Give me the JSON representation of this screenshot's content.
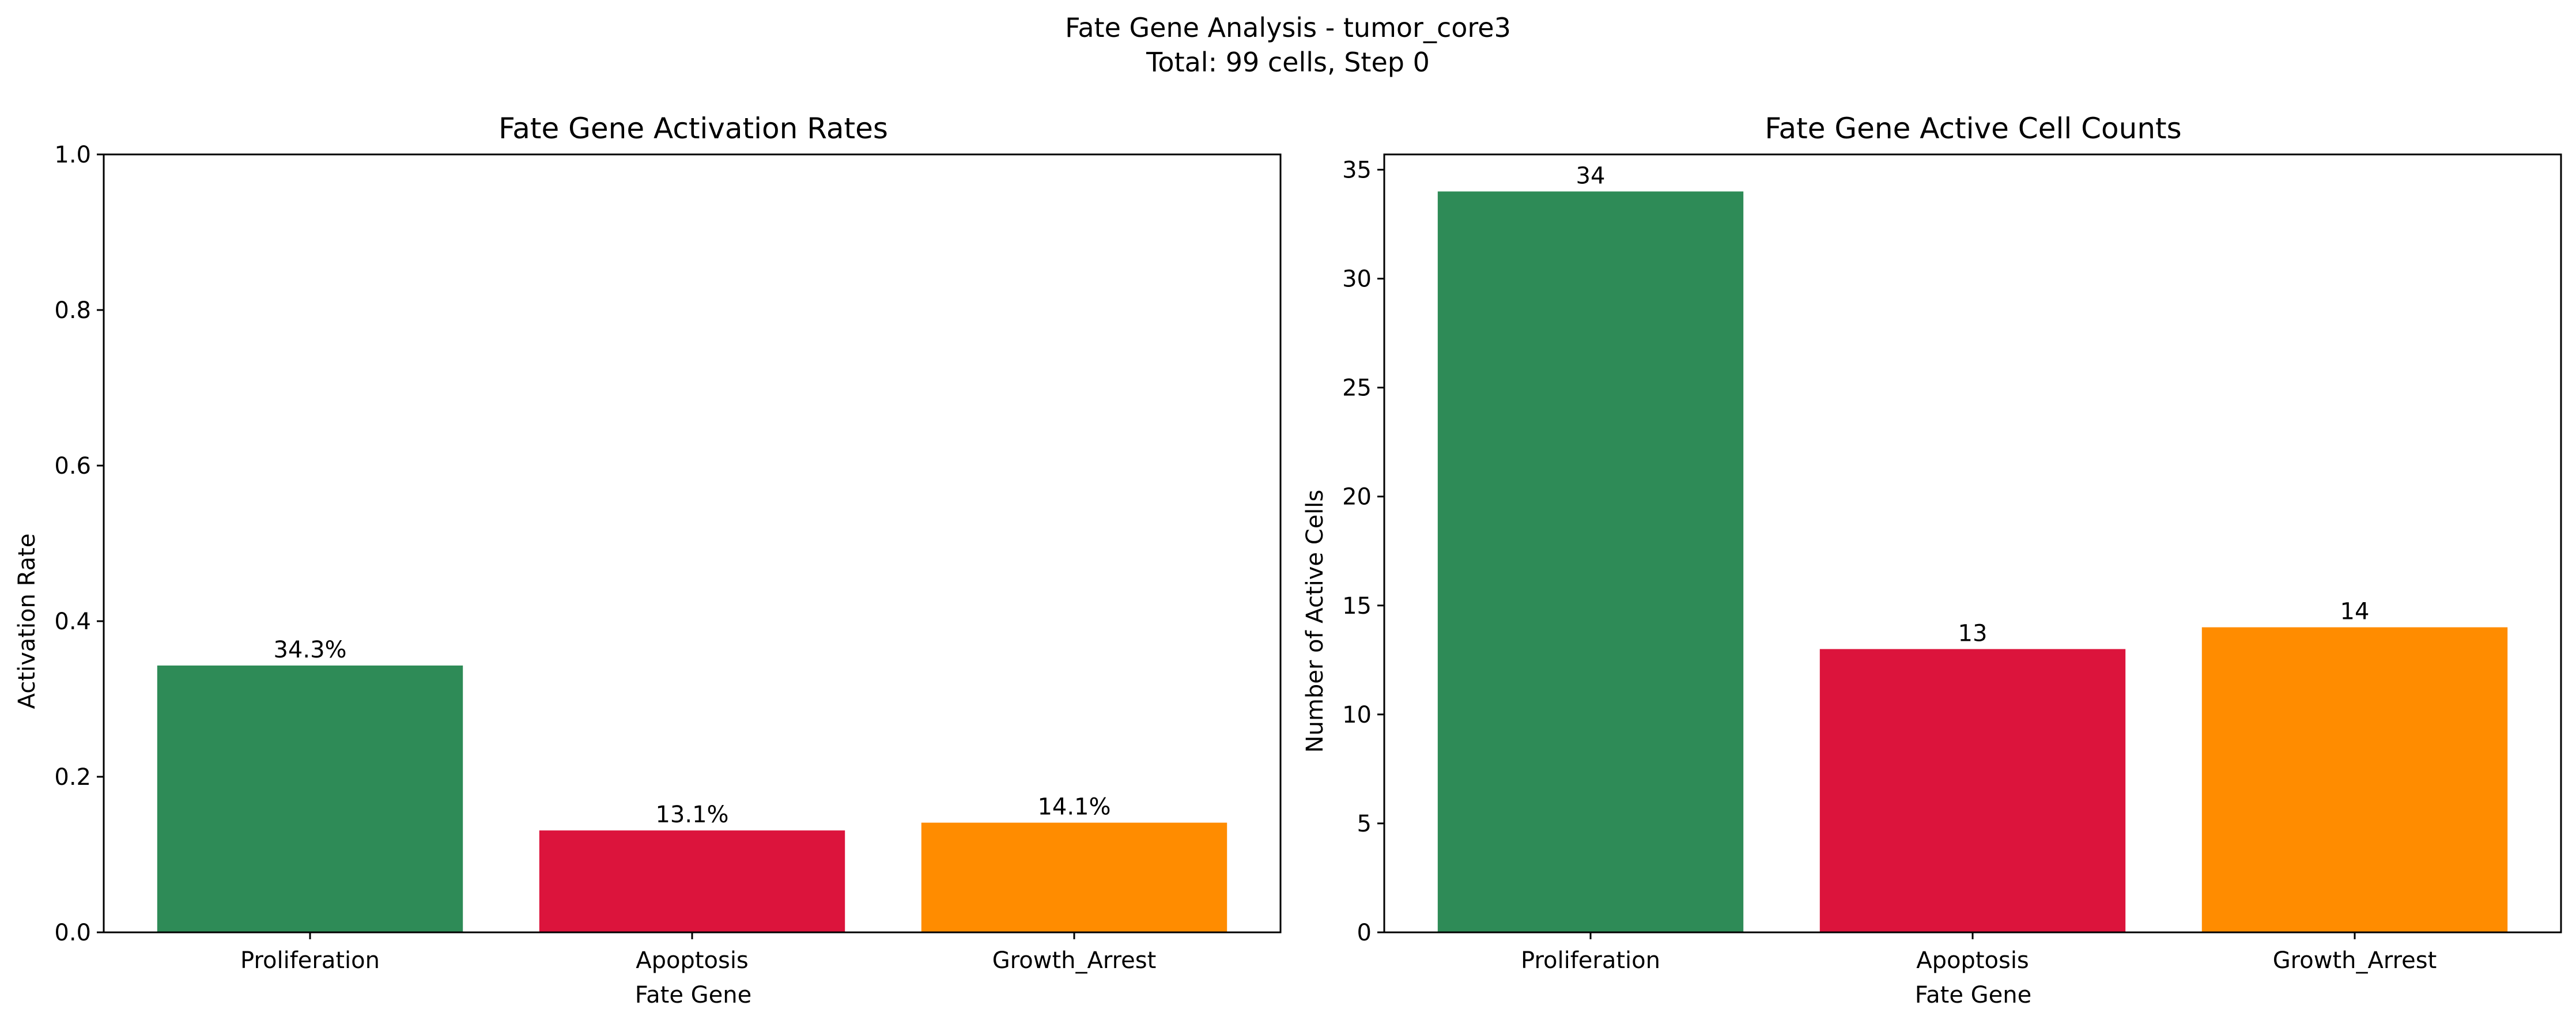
{
  "figure": {
    "suptitle_line1": "Fate Gene Analysis - tumor_core3",
    "suptitle_line2": "Total: 99 cells, Step 0"
  },
  "chart_data": [
    {
      "type": "bar",
      "title": "Fate Gene Activation Rates",
      "xlabel": "Fate Gene",
      "ylabel": "Activation Rate",
      "categories": [
        "Proliferation",
        "Apoptosis",
        "Growth_Arrest"
      ],
      "values": [
        0.343,
        0.131,
        0.141
      ],
      "bar_labels": [
        "34.3%",
        "13.1%",
        "14.1%"
      ],
      "colors": [
        "#2e8b57",
        "#dc143c",
        "#ff8c00"
      ],
      "ylim": [
        0,
        1.0
      ],
      "yticks": [
        0.0,
        0.2,
        0.4,
        0.6,
        0.8,
        1.0
      ],
      "ytick_labels": [
        "0.0",
        "0.2",
        "0.4",
        "0.6",
        "0.8",
        "1.0"
      ],
      "grid": false
    },
    {
      "type": "bar",
      "title": "Fate Gene Active Cell Counts",
      "xlabel": "Fate Gene",
      "ylabel": "Number of Active Cells",
      "categories": [
        "Proliferation",
        "Apoptosis",
        "Growth_Arrest"
      ],
      "values": [
        34,
        13,
        14
      ],
      "bar_labels": [
        "34",
        "13",
        "14"
      ],
      "colors": [
        "#2e8b57",
        "#dc143c",
        "#ff8c00"
      ],
      "ylim": [
        0,
        35.7
      ],
      "yticks": [
        0,
        5,
        10,
        15,
        20,
        25,
        30,
        35
      ],
      "ytick_labels": [
        "0",
        "5",
        "10",
        "15",
        "20",
        "25",
        "30",
        "35"
      ],
      "grid": false
    }
  ]
}
